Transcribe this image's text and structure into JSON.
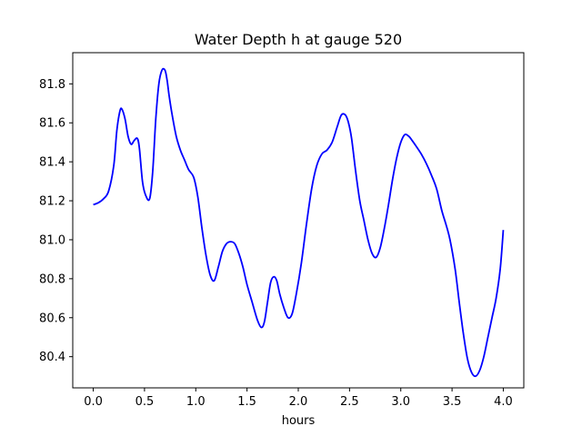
{
  "chart_data": {
    "type": "line",
    "title": "Water Depth h at gauge 520",
    "xlabel": "hours",
    "ylabel": "",
    "xlim": [
      -0.2,
      4.2
    ],
    "ylim": [
      80.24,
      81.96
    ],
    "xticks": [
      0.0,
      0.5,
      1.0,
      1.5,
      2.0,
      2.5,
      3.0,
      3.5,
      4.0
    ],
    "xtick_labels": [
      "0.0",
      "0.5",
      "1.0",
      "1.5",
      "2.0",
      "2.5",
      "3.0",
      "3.5",
      "4.0"
    ],
    "yticks": [
      80.4,
      80.6,
      80.8,
      81.0,
      81.2,
      81.4,
      81.6,
      81.8
    ],
    "ytick_labels": [
      "80.4",
      "80.6",
      "80.8",
      "81.0",
      "81.2",
      "81.4",
      "81.6",
      "81.8"
    ],
    "grid": false,
    "legend": false,
    "series": [
      {
        "color": "#0000ff",
        "x": [
          0.0,
          0.05,
          0.1,
          0.15,
          0.2,
          0.23,
          0.26,
          0.28,
          0.31,
          0.34,
          0.37,
          0.4,
          0.43,
          0.45,
          0.48,
          0.51,
          0.55,
          0.58,
          0.61,
          0.64,
          0.67,
          0.7,
          0.72,
          0.74,
          0.77,
          0.81,
          0.85,
          0.89,
          0.93,
          0.98,
          1.02,
          1.06,
          1.1,
          1.14,
          1.18,
          1.22,
          1.26,
          1.3,
          1.34,
          1.38,
          1.42,
          1.46,
          1.5,
          1.55,
          1.6,
          1.64,
          1.67,
          1.7,
          1.73,
          1.76,
          1.79,
          1.82,
          1.86,
          1.9,
          1.94,
          1.98,
          2.03,
          2.08,
          2.13,
          2.18,
          2.23,
          2.28,
          2.33,
          2.38,
          2.42,
          2.46,
          2.49,
          2.52,
          2.56,
          2.6,
          2.64,
          2.68,
          2.72,
          2.76,
          2.8,
          2.84,
          2.88,
          2.92,
          2.96,
          3.0,
          3.04,
          3.08,
          3.11,
          3.15,
          3.2,
          3.25,
          3.3,
          3.35,
          3.4,
          3.44,
          3.48,
          3.53,
          3.57,
          3.61,
          3.65,
          3.69,
          3.73,
          3.77,
          3.81,
          3.85,
          3.89,
          3.93,
          3.97,
          4.0
        ],
        "y": [
          81.18,
          81.19,
          81.21,
          81.25,
          81.38,
          81.56,
          81.66,
          81.67,
          81.62,
          81.53,
          81.49,
          81.51,
          81.52,
          81.47,
          81.3,
          81.23,
          81.21,
          81.35,
          81.62,
          81.8,
          81.87,
          81.87,
          81.82,
          81.74,
          81.64,
          81.53,
          81.46,
          81.41,
          81.36,
          81.32,
          81.22,
          81.06,
          80.92,
          80.82,
          80.79,
          80.86,
          80.94,
          80.98,
          80.99,
          80.98,
          80.93,
          80.86,
          80.77,
          80.68,
          80.59,
          80.55,
          80.58,
          80.68,
          80.78,
          80.81,
          80.79,
          80.72,
          80.65,
          80.6,
          80.62,
          80.72,
          80.88,
          81.08,
          81.26,
          81.38,
          81.44,
          81.46,
          81.5,
          81.58,
          81.64,
          81.64,
          81.6,
          81.52,
          81.35,
          81.2,
          81.1,
          81.0,
          80.93,
          80.91,
          80.96,
          81.06,
          81.18,
          81.31,
          81.42,
          81.5,
          81.54,
          81.53,
          81.51,
          81.48,
          81.44,
          81.39,
          81.33,
          81.26,
          81.15,
          81.08,
          81.0,
          80.85,
          80.68,
          80.52,
          80.39,
          80.32,
          80.3,
          80.33,
          80.4,
          80.5,
          80.6,
          80.7,
          80.85,
          81.05
        ]
      }
    ]
  }
}
